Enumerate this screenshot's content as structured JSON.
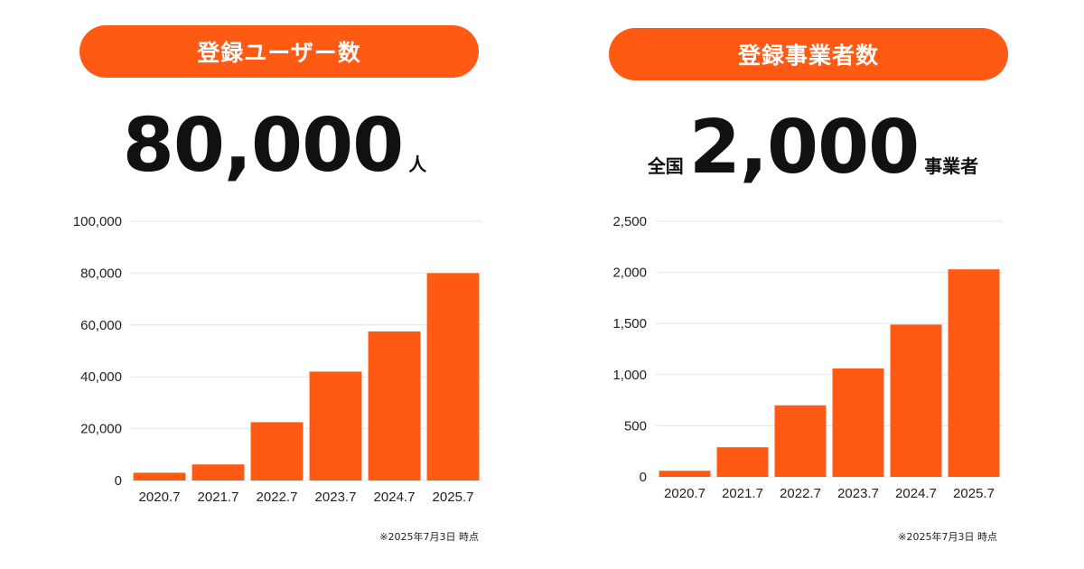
{
  "colors": {
    "accent": "#FF5A14",
    "grid": "#E6E6E6",
    "text": "#111111"
  },
  "left": {
    "pill_label": "登録ユーザー数",
    "headline": {
      "prefix": "",
      "number": "80,000",
      "unit": "人"
    },
    "note": "※2025年7月3日 時点",
    "chart_data": {
      "type": "bar",
      "title": "登録ユーザー数",
      "categories": [
        "2020.7",
        "2021.7",
        "2022.7",
        "2023.7",
        "2024.7",
        "2025.7"
      ],
      "values": [
        3000,
        6200,
        22500,
        42000,
        57500,
        80000
      ],
      "ylim": [
        0,
        100000
      ],
      "yticks": [
        0,
        20000,
        40000,
        60000,
        80000,
        100000
      ],
      "ytick_labels": [
        "0",
        "20,000",
        "40,000",
        "60,000",
        "80,000",
        "100,000"
      ],
      "grid": true
    }
  },
  "right": {
    "pill_label": "登録事業者数",
    "headline": {
      "prefix": "全国",
      "number": "2,000",
      "unit": "事業者"
    },
    "note": "※2025年7月3日 時点",
    "chart_data": {
      "type": "bar",
      "title": "登録事業者数",
      "categories": [
        "2020.7",
        "2021.7",
        "2022.7",
        "2023.7",
        "2024.7",
        "2025.7"
      ],
      "values": [
        60,
        290,
        700,
        1060,
        1490,
        2030
      ],
      "ylim": [
        0,
        2500
      ],
      "yticks": [
        0,
        500,
        1000,
        1500,
        2000,
        2500
      ],
      "ytick_labels": [
        "0",
        "500",
        "1,000",
        "1,500",
        "2,000",
        "2,500"
      ],
      "grid": true
    }
  }
}
